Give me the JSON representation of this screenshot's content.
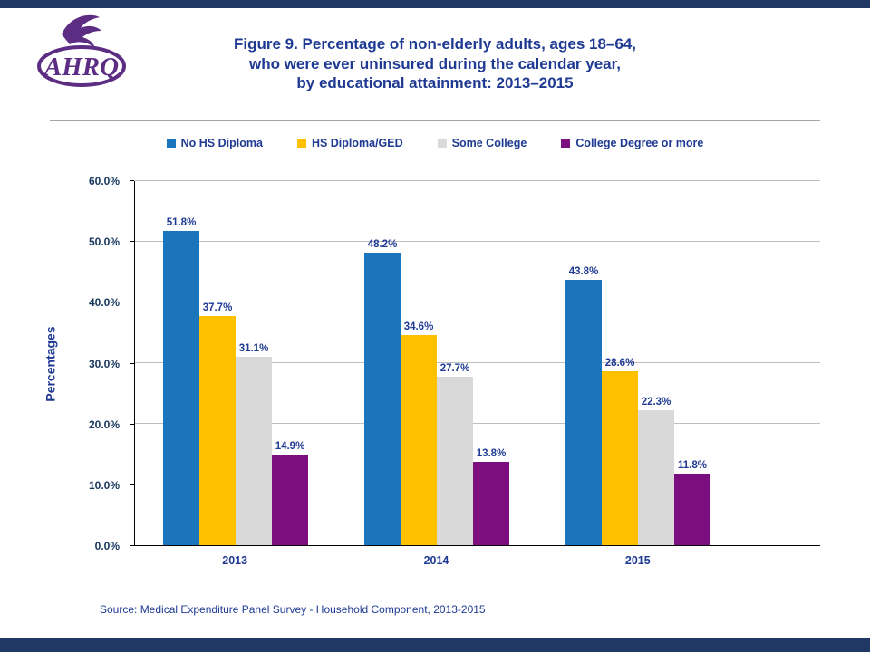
{
  "header": {
    "title_lines": [
      "Figure 9. Percentage of non-elderly adults, ages 18–64,",
      "who were ever uninsured during the calendar year,",
      "by educational attainment: 2013–2015"
    ]
  },
  "logo": {
    "text": "AHRQ"
  },
  "chart_data": {
    "type": "bar",
    "title": "Figure 9. Percentage of non-elderly adults, ages 18–64, who were ever uninsured during the calendar year, by educational attainment: 2013–2015",
    "categories": [
      "2013",
      "2014",
      "2015"
    ],
    "series": [
      {
        "name": "No HS Diploma",
        "color": "#1B75BC",
        "values": [
          51.8,
          48.2,
          43.8
        ]
      },
      {
        "name": "HS Diploma/GED",
        "color": "#FFC000",
        "values": [
          37.7,
          34.6,
          28.6
        ]
      },
      {
        "name": "Some College",
        "color": "#D9D9D9",
        "values": [
          31.1,
          27.7,
          22.3
        ]
      },
      {
        "name": "College Degree or more",
        "color": "#7D0E7F",
        "values": [
          14.9,
          13.8,
          11.8
        ]
      }
    ],
    "xlabel": "",
    "ylabel": "Percentages",
    "ylim": [
      0,
      60
    ],
    "yticks": [
      0,
      10,
      20,
      30,
      40,
      50,
      60
    ],
    "ytick_suffix": "%",
    "value_suffix": "%",
    "grid": true,
    "legend_position": "top"
  },
  "source": "Source:  Medical Expenditure Panel Survey - Household Component, 2013-2015",
  "colors": {
    "accent_bar": "#1F3864",
    "text_blue": "#1F3A93",
    "ink_navy": "#17365D",
    "grid_color": "#BFBFBF",
    "axis_color": "#000000",
    "logo_purple": "#5C2D82"
  }
}
